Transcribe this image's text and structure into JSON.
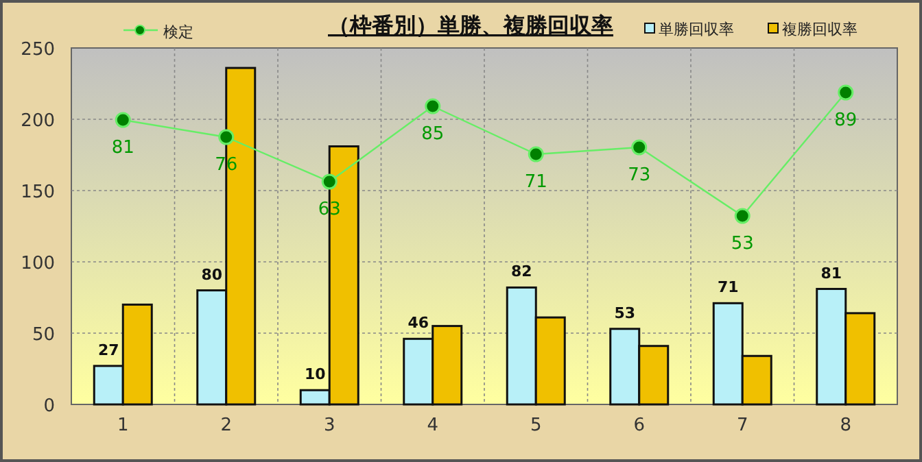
{
  "chart_data": {
    "type": "bar",
    "title": "（枠番別）単勝、複勝回収率",
    "categories": [
      "1",
      "2",
      "3",
      "4",
      "5",
      "6",
      "7",
      "8"
    ],
    "series": [
      {
        "name": "単勝回収率",
        "color": "#b8f0f8",
        "values": [
          27,
          80,
          10,
          46,
          82,
          53,
          71,
          81
        ],
        "value_labels": [
          "27",
          "80",
          "10",
          "46",
          "82",
          "53",
          "71",
          "81"
        ]
      },
      {
        "name": "複勝回収率",
        "color": "#f0c000",
        "values": [
          70,
          236,
          181,
          55,
          61,
          41,
          34,
          64
        ]
      },
      {
        "name": "検定",
        "type": "line",
        "axis": "y2",
        "color": "#66ee66",
        "values": [
          81,
          76,
          63,
          85,
          71,
          73,
          53,
          89
        ],
        "value_labels": [
          "81",
          "76",
          "63",
          "85",
          "71",
          "73",
          "53",
          "89"
        ]
      }
    ],
    "ylim": [
      0,
      250
    ],
    "yticks": [
      0,
      50,
      100,
      150,
      200,
      250
    ],
    "y2lim": [
      -2,
      102
    ],
    "tick_labels": "xy",
    "grid": true,
    "legend": "top",
    "marker": "circle"
  }
}
